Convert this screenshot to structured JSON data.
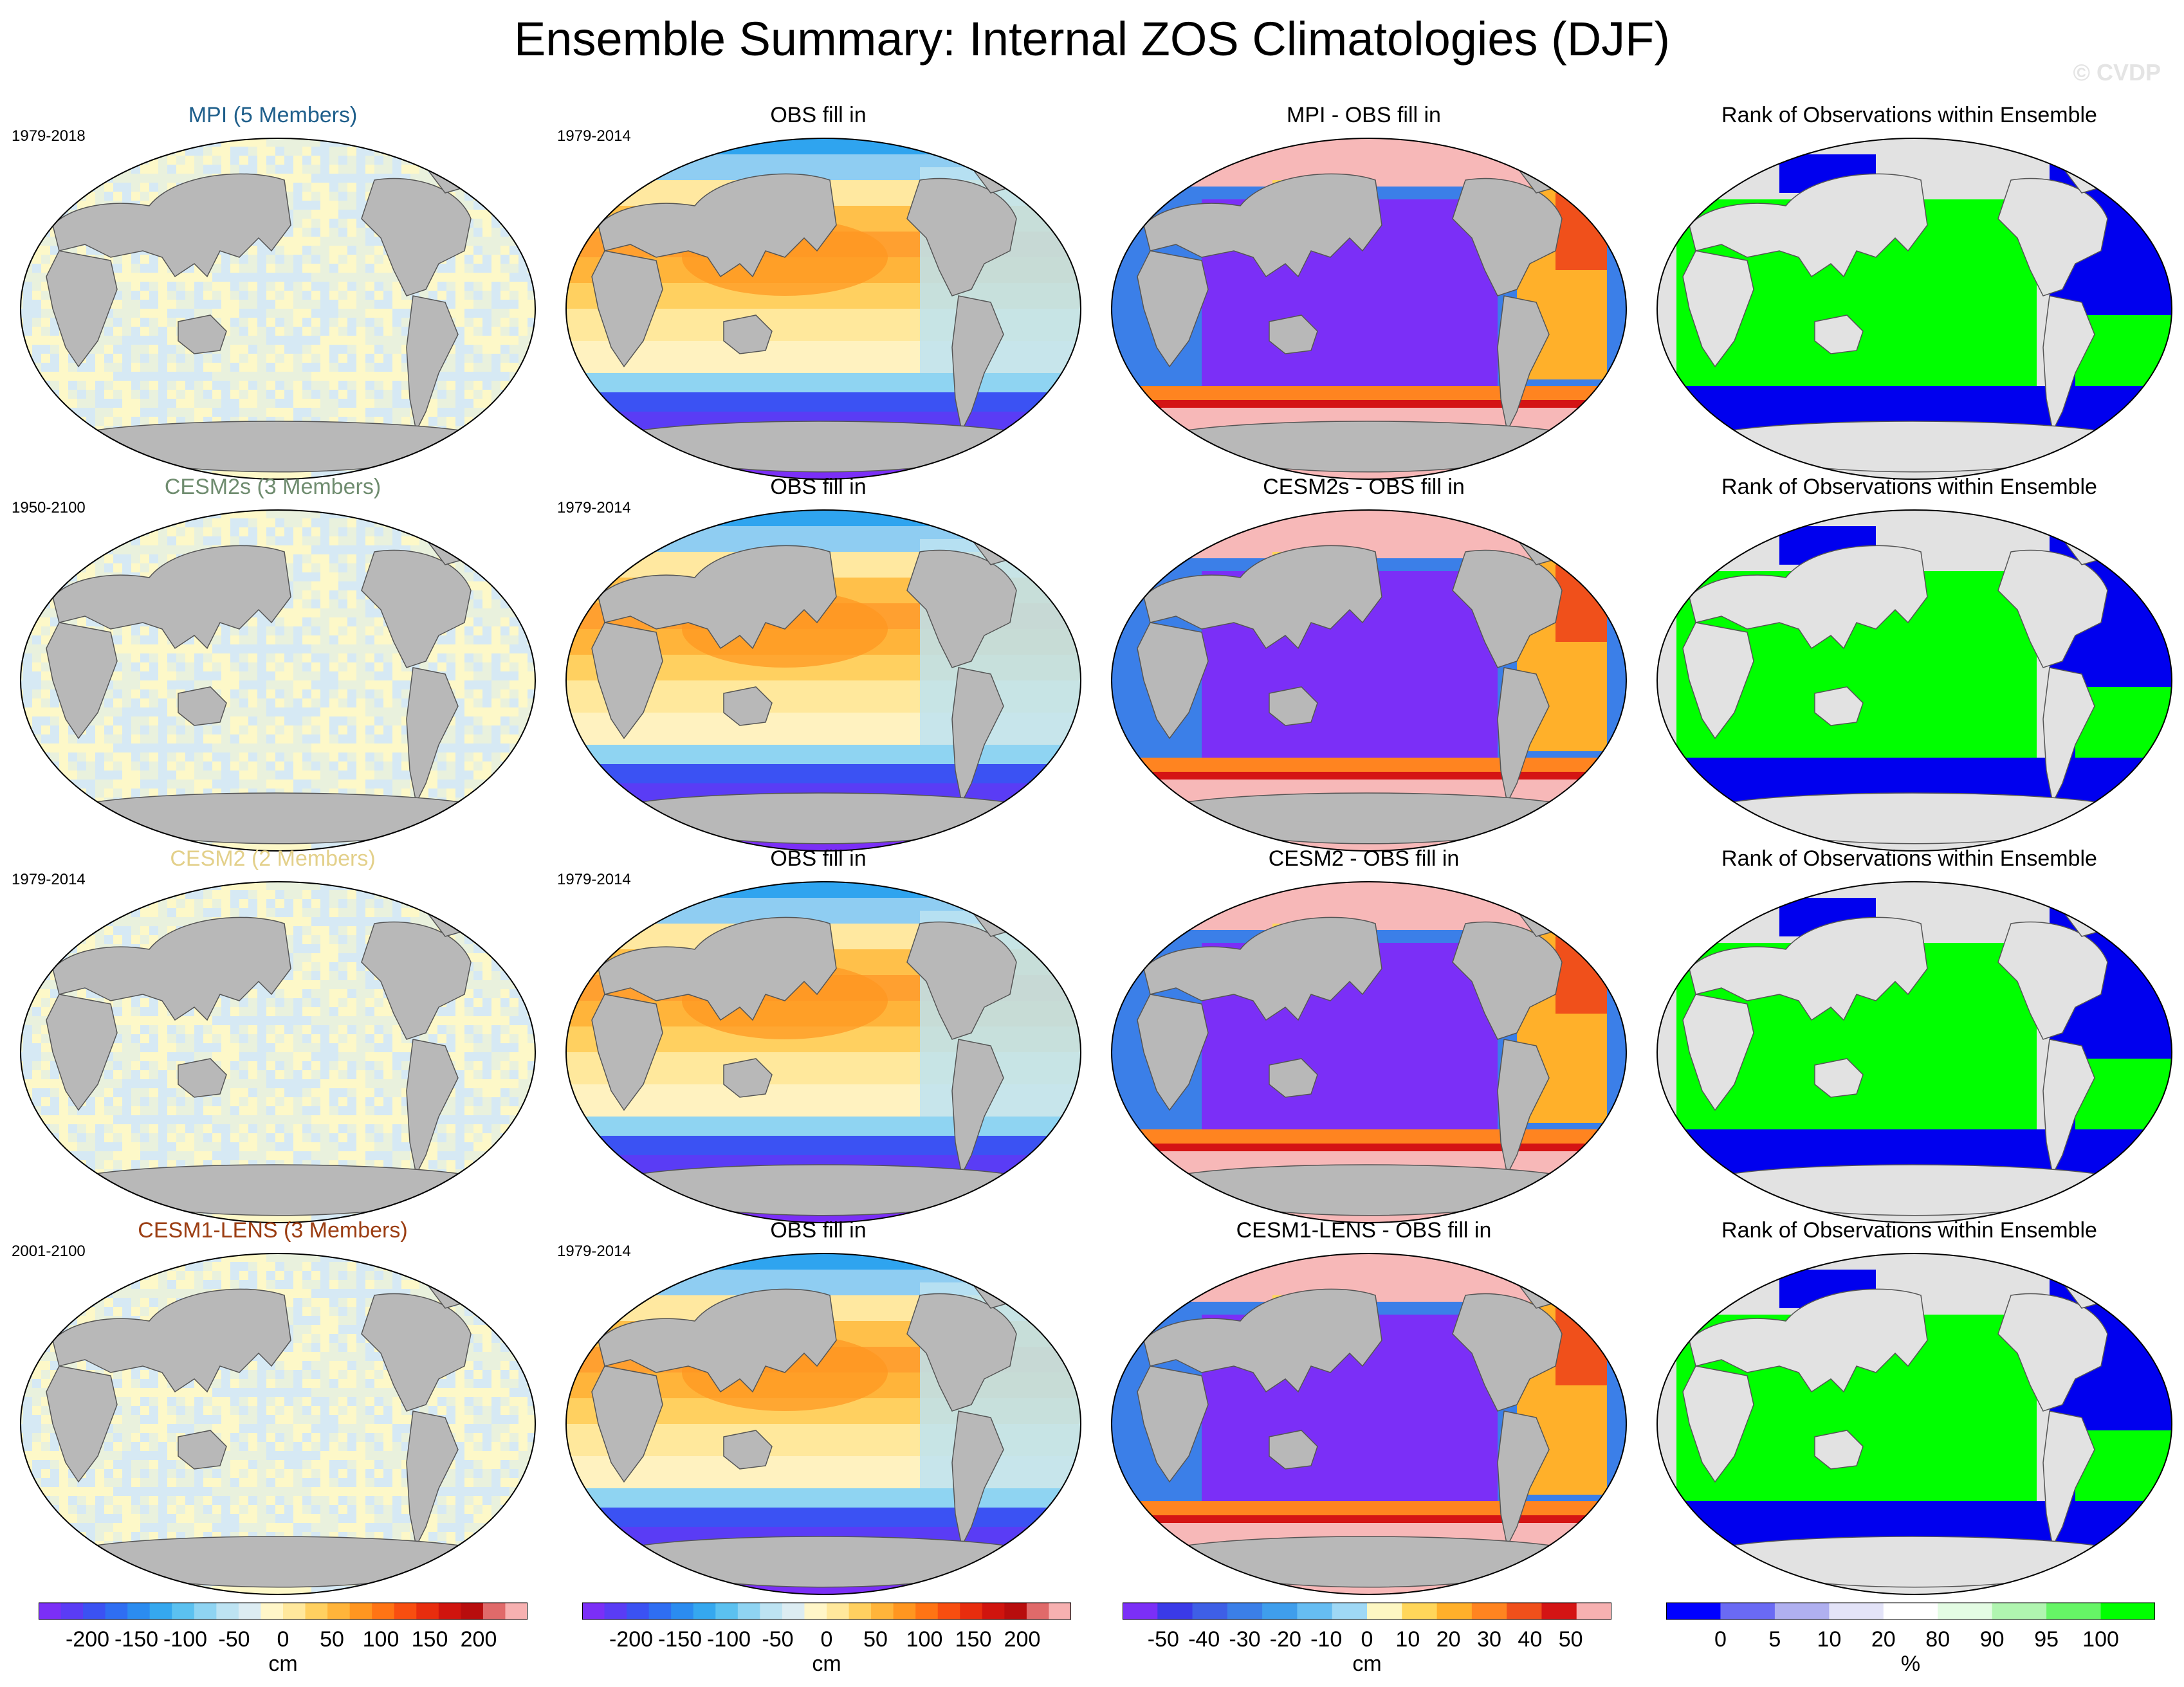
{
  "title": "Ensemble Summary: Internal ZOS Climatologies (DJF)",
  "watermark": "© CVDP",
  "rows": [
    {
      "model_label": "MPI (5 Members)",
      "model_color": "#1f5f8b",
      "model_period": "1979-2018",
      "obs_label": "OBS fill in",
      "obs_period": "1979-2014",
      "diff_label": "MPI - OBS fill in",
      "rank_label": "Rank of Observations within Ensemble"
    },
    {
      "model_label": "CESM2s (3 Members)",
      "model_color": "#6f8c6f",
      "model_period": "1950-2100",
      "obs_label": "OBS fill in",
      "obs_period": "1979-2014",
      "diff_label": "CESM2s - OBS fill in",
      "rank_label": "Rank of Observations within Ensemble"
    },
    {
      "model_label": "CESM2 (2 Members)",
      "model_color": "#e3d08a",
      "model_period": "1979-2014",
      "obs_label": "OBS fill in",
      "obs_period": "1979-2014",
      "diff_label": "CESM2 - OBS fill in",
      "rank_label": "Rank of Observations within Ensemble"
    },
    {
      "model_label": "CESM1-LENS (3 Members)",
      "model_color": "#9b3d12",
      "model_period": "2001-2100",
      "obs_label": "OBS fill in",
      "obs_period": "1979-2014",
      "diff_label": "CESM1-LENS - OBS fill in",
      "rank_label": "Rank of Observations within Ensemble"
    }
  ],
  "colorbars": [
    {
      "labels": [
        "-200",
        "-150",
        "-100",
        "-50",
        "0",
        "50",
        "100",
        "150",
        "200"
      ],
      "unit": "cm",
      "colors": [
        "#7b2ff7",
        "#5a3cf5",
        "#3b52f3",
        "#2f6ef2",
        "#2b8cf0",
        "#35a8ef",
        "#5bc1f0",
        "#8fd4f2",
        "#bde3f2",
        "#dcecf2",
        "#fff6c8",
        "#ffe89c",
        "#ffd060",
        "#ffb43a",
        "#ff9620",
        "#ff7414",
        "#f84e10",
        "#e82d0e",
        "#d0140e",
        "#b80d0d",
        "#e06a6a",
        "#f7b1b1"
      ]
    },
    {
      "labels": [
        "-200",
        "-150",
        "-100",
        "-50",
        "0",
        "50",
        "100",
        "150",
        "200"
      ],
      "unit": "cm",
      "colors": [
        "#7b2ff7",
        "#5a3cf5",
        "#3b52f3",
        "#2f6ef2",
        "#2b8cf0",
        "#35a8ef",
        "#5bc1f0",
        "#8fd4f2",
        "#bde3f2",
        "#dcecf2",
        "#fff6c8",
        "#ffe89c",
        "#ffd060",
        "#ffb43a",
        "#ff9620",
        "#ff7414",
        "#f84e10",
        "#e82d0e",
        "#d0140e",
        "#b80d0d",
        "#e06a6a",
        "#f7b1b1"
      ]
    },
    {
      "labels": [
        "-50",
        "-40",
        "-30",
        "-20",
        "-10",
        "0",
        "10",
        "20",
        "30",
        "40",
        "50"
      ],
      "unit": "cm",
      "colors": [
        "#7b2ff7",
        "#3a3ae8",
        "#3e5fe6",
        "#3b7fe8",
        "#3f9eec",
        "#66bdf2",
        "#9fd8f5",
        "#fdf7c2",
        "#ffd65a",
        "#ffb02a",
        "#ff8420",
        "#f0501b",
        "#d41414",
        "#f7b1b1"
      ]
    },
    {
      "labels": [
        "0",
        "5",
        "10",
        "20",
        "80",
        "90",
        "95",
        "100"
      ],
      "unit": "%",
      "colors": [
        "#0000ff",
        "#6a6af4",
        "#b0b0f0",
        "#e3e3f8",
        "#ffffff",
        "#e3fce3",
        "#b0f5b0",
        "#66f566",
        "#00ff00"
      ]
    }
  ],
  "map_colors": {
    "land": "#b8b8b8",
    "ocean_light": "#d8e8f0",
    "rank_land": "#e2e2e2",
    "rank_green": "#00ff00",
    "rank_blue": "#0000ee",
    "diff_pink": "#f7b8b8",
    "diff_purple": "#7b2ff7"
  }
}
